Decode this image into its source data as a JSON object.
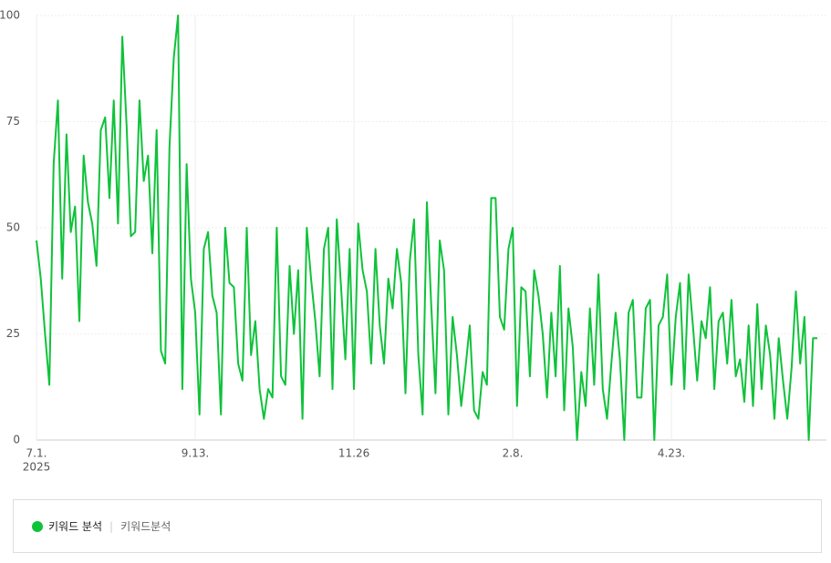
{
  "chart_data": {
    "type": "line",
    "categories": [
      "7.1.",
      null,
      null,
      null,
      null,
      null,
      null,
      null,
      null,
      null,
      null,
      null,
      null,
      null,
      null,
      null,
      null,
      null,
      null,
      null,
      null,
      null,
      null,
      null,
      null,
      null,
      null,
      null,
      null,
      null,
      null,
      null,
      null,
      null,
      null,
      null,
      null,
      "9.13.",
      null,
      null,
      null,
      null,
      null,
      null,
      null,
      null,
      null,
      null,
      null,
      null,
      null,
      null,
      null,
      null,
      null,
      null,
      null,
      null,
      null,
      null,
      null,
      null,
      null,
      null,
      null,
      null,
      null,
      null,
      null,
      null,
      null,
      null,
      null,
      null,
      "11.26",
      null,
      null,
      null,
      null,
      null,
      null,
      null,
      null,
      null,
      null,
      null,
      null,
      null,
      null,
      null,
      null,
      null,
      null,
      null,
      null,
      null,
      null,
      null,
      null,
      null,
      null,
      null,
      null,
      null,
      null,
      null,
      null,
      null,
      null,
      null,
      null,
      "2.8.",
      null,
      null,
      null,
      null,
      null,
      null,
      null,
      null,
      null,
      null,
      null,
      null,
      null,
      null,
      null,
      null,
      null,
      null,
      null,
      null,
      null,
      null,
      null,
      null,
      null,
      null,
      null,
      null,
      null,
      null,
      null,
      null,
      null,
      null,
      null,
      null,
      "4.23.",
      null,
      null,
      null,
      null,
      null,
      null,
      null,
      null,
      null,
      null,
      null,
      null,
      null,
      null,
      null,
      null,
      null,
      null,
      null,
      null,
      null,
      null,
      null,
      null,
      null,
      null,
      null,
      null,
      null,
      null,
      null,
      null,
      null,
      null
    ],
    "year_label": "2025",
    "series": [
      {
        "name": "키워드 분석",
        "detail": "키워드분석",
        "color": "#0fc23a",
        "values": [
          47,
          38,
          25,
          13,
          65,
          80,
          38,
          72,
          49,
          55,
          28,
          67,
          56,
          51,
          41,
          73,
          76,
          57,
          80,
          51,
          95,
          74,
          48,
          49,
          80,
          61,
          67,
          44,
          73,
          21,
          18,
          69,
          90,
          100,
          12,
          65,
          38,
          30,
          6,
          45,
          49,
          34,
          30,
          6,
          50,
          37,
          36,
          18,
          14,
          50,
          20,
          28,
          12,
          5,
          12,
          10,
          50,
          15,
          13,
          41,
          25,
          40,
          5,
          50,
          38,
          28,
          15,
          45,
          50,
          12,
          52,
          36,
          19,
          45,
          12,
          51,
          40,
          35,
          18,
          45,
          27,
          18,
          38,
          31,
          45,
          37,
          11,
          42,
          52,
          20,
          6,
          56,
          32,
          11,
          47,
          40,
          6,
          29,
          20,
          8,
          17,
          27,
          7,
          5,
          16,
          13,
          57,
          57,
          29,
          26,
          45,
          50,
          8,
          36,
          35,
          15,
          40,
          34,
          25,
          10,
          30,
          15,
          41,
          7,
          31,
          22,
          0,
          16,
          8,
          31,
          13,
          39,
          12,
          5,
          18,
          30,
          19,
          0,
          30,
          33,
          10,
          10,
          31,
          33,
          0,
          27,
          29,
          39,
          13,
          29,
          37,
          12,
          39,
          27,
          14,
          28,
          24,
          36,
          12,
          28,
          30,
          18,
          33,
          15,
          19,
          9,
          27,
          8,
          32,
          12,
          27,
          20,
          5,
          24,
          14,
          5,
          17,
          35,
          18,
          29,
          0,
          24,
          24
        ]
      }
    ],
    "ylim": [
      0,
      100
    ],
    "yticks": [
      0,
      25,
      50,
      75,
      100
    ],
    "grid": true
  }
}
